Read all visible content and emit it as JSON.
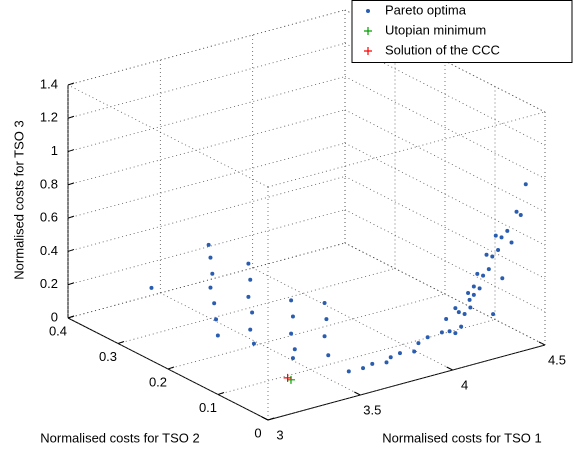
{
  "chart_data": {
    "type": "scatter3d",
    "x_label": "Normalised costs for TSO 1",
    "y_label": "Normalised costs for TSO 2",
    "z_label": "Normalised costs for TSO 3",
    "xlim": [
      3,
      4.5
    ],
    "xticks": [
      3,
      3.5,
      4,
      4.5
    ],
    "ylim": [
      0,
      0.4
    ],
    "yticks": [
      0,
      0.1,
      0.2,
      0.3,
      0.4
    ],
    "zlim": [
      0,
      1.4
    ],
    "zticks": [
      0,
      0.2,
      0.4,
      0.6,
      0.8,
      1,
      1.2,
      1.4
    ],
    "grid": true,
    "legend": "top-right",
    "series": [
      {
        "name": "Pareto optima",
        "color": "#2a5db0",
        "marker": "dot",
        "x": [
          3.1,
          3.22,
          3.23,
          3.24,
          3.23,
          3.25,
          3.26,
          3.27,
          3.3,
          3.31,
          3.3,
          3.32,
          3.31,
          3.33,
          3.45,
          3.46,
          3.45,
          3.47,
          3.46,
          3.55,
          3.56,
          3.55,
          3.57,
          3.6,
          3.65,
          3.7,
          3.75,
          3.8,
          3.85,
          3.9,
          3.95,
          4.0,
          4.05,
          4.1,
          4.15,
          4.2,
          4.25,
          4.1,
          4.15,
          4.2,
          4.25,
          4.3,
          4.35,
          4.4,
          4.45,
          4.15,
          4.2,
          4.25,
          4.3,
          4.35,
          4.4,
          4.2,
          4.25,
          4.3,
          4.35,
          4.4,
          4.45,
          4.3,
          4.35,
          4.4,
          4.45
        ],
        "y": [
          0.27,
          0.2,
          0.2,
          0.2,
          0.2,
          0.2,
          0.2,
          0.2,
          0.15,
          0.15,
          0.15,
          0.15,
          0.15,
          0.15,
          0.12,
          0.12,
          0.12,
          0.12,
          0.12,
          0.09,
          0.09,
          0.09,
          0.09,
          0.06,
          0.05,
          0.05,
          0.04,
          0.05,
          0.05,
          0.04,
          0.05,
          0.05,
          0.04,
          0.05,
          0.05,
          0.04,
          0.05,
          0.02,
          0.02,
          0.02,
          0.02,
          0.02,
          0.02,
          0.02,
          0.02,
          0.05,
          0.05,
          0.05,
          0.05,
          0.05,
          0.05,
          0.08,
          0.08,
          0.08,
          0.08,
          0.08,
          0.08,
          0.03,
          0.03,
          0.03,
          0.03
        ],
        "z": [
          0.35,
          0.68,
          0.6,
          0.5,
          0.42,
          0.32,
          0.22,
          0.12,
          0.62,
          0.52,
          0.42,
          0.32,
          0.22,
          0.13,
          0.4,
          0.3,
          0.2,
          0.1,
          0.05,
          0.4,
          0.3,
          0.2,
          0.08,
          0.02,
          0.04,
          0.05,
          0.06,
          0.06,
          0.07,
          0.08,
          0.1,
          0.12,
          0.15,
          0.2,
          0.25,
          0.3,
          0.35,
          0.2,
          0.3,
          0.4,
          0.5,
          0.6,
          0.7,
          0.8,
          0.95,
          0.1,
          0.2,
          0.3,
          0.4,
          0.5,
          0.6,
          0.05,
          0.15,
          0.25,
          0.35,
          0.45,
          0.55,
          0.2,
          0.4,
          0.6,
          0.75
        ]
      },
      {
        "name": "Utopian minimum",
        "color": "#00a000",
        "marker": "plus",
        "x": [
          3.36
        ],
        "y": [
          0.087
        ],
        "z": [
          0
        ]
      },
      {
        "name": "Solution of the CCC",
        "color": "#ff0000",
        "marker": "plus",
        "x": [
          3.35
        ],
        "y": [
          0.09
        ],
        "z": [
          0.01
        ]
      }
    ]
  }
}
